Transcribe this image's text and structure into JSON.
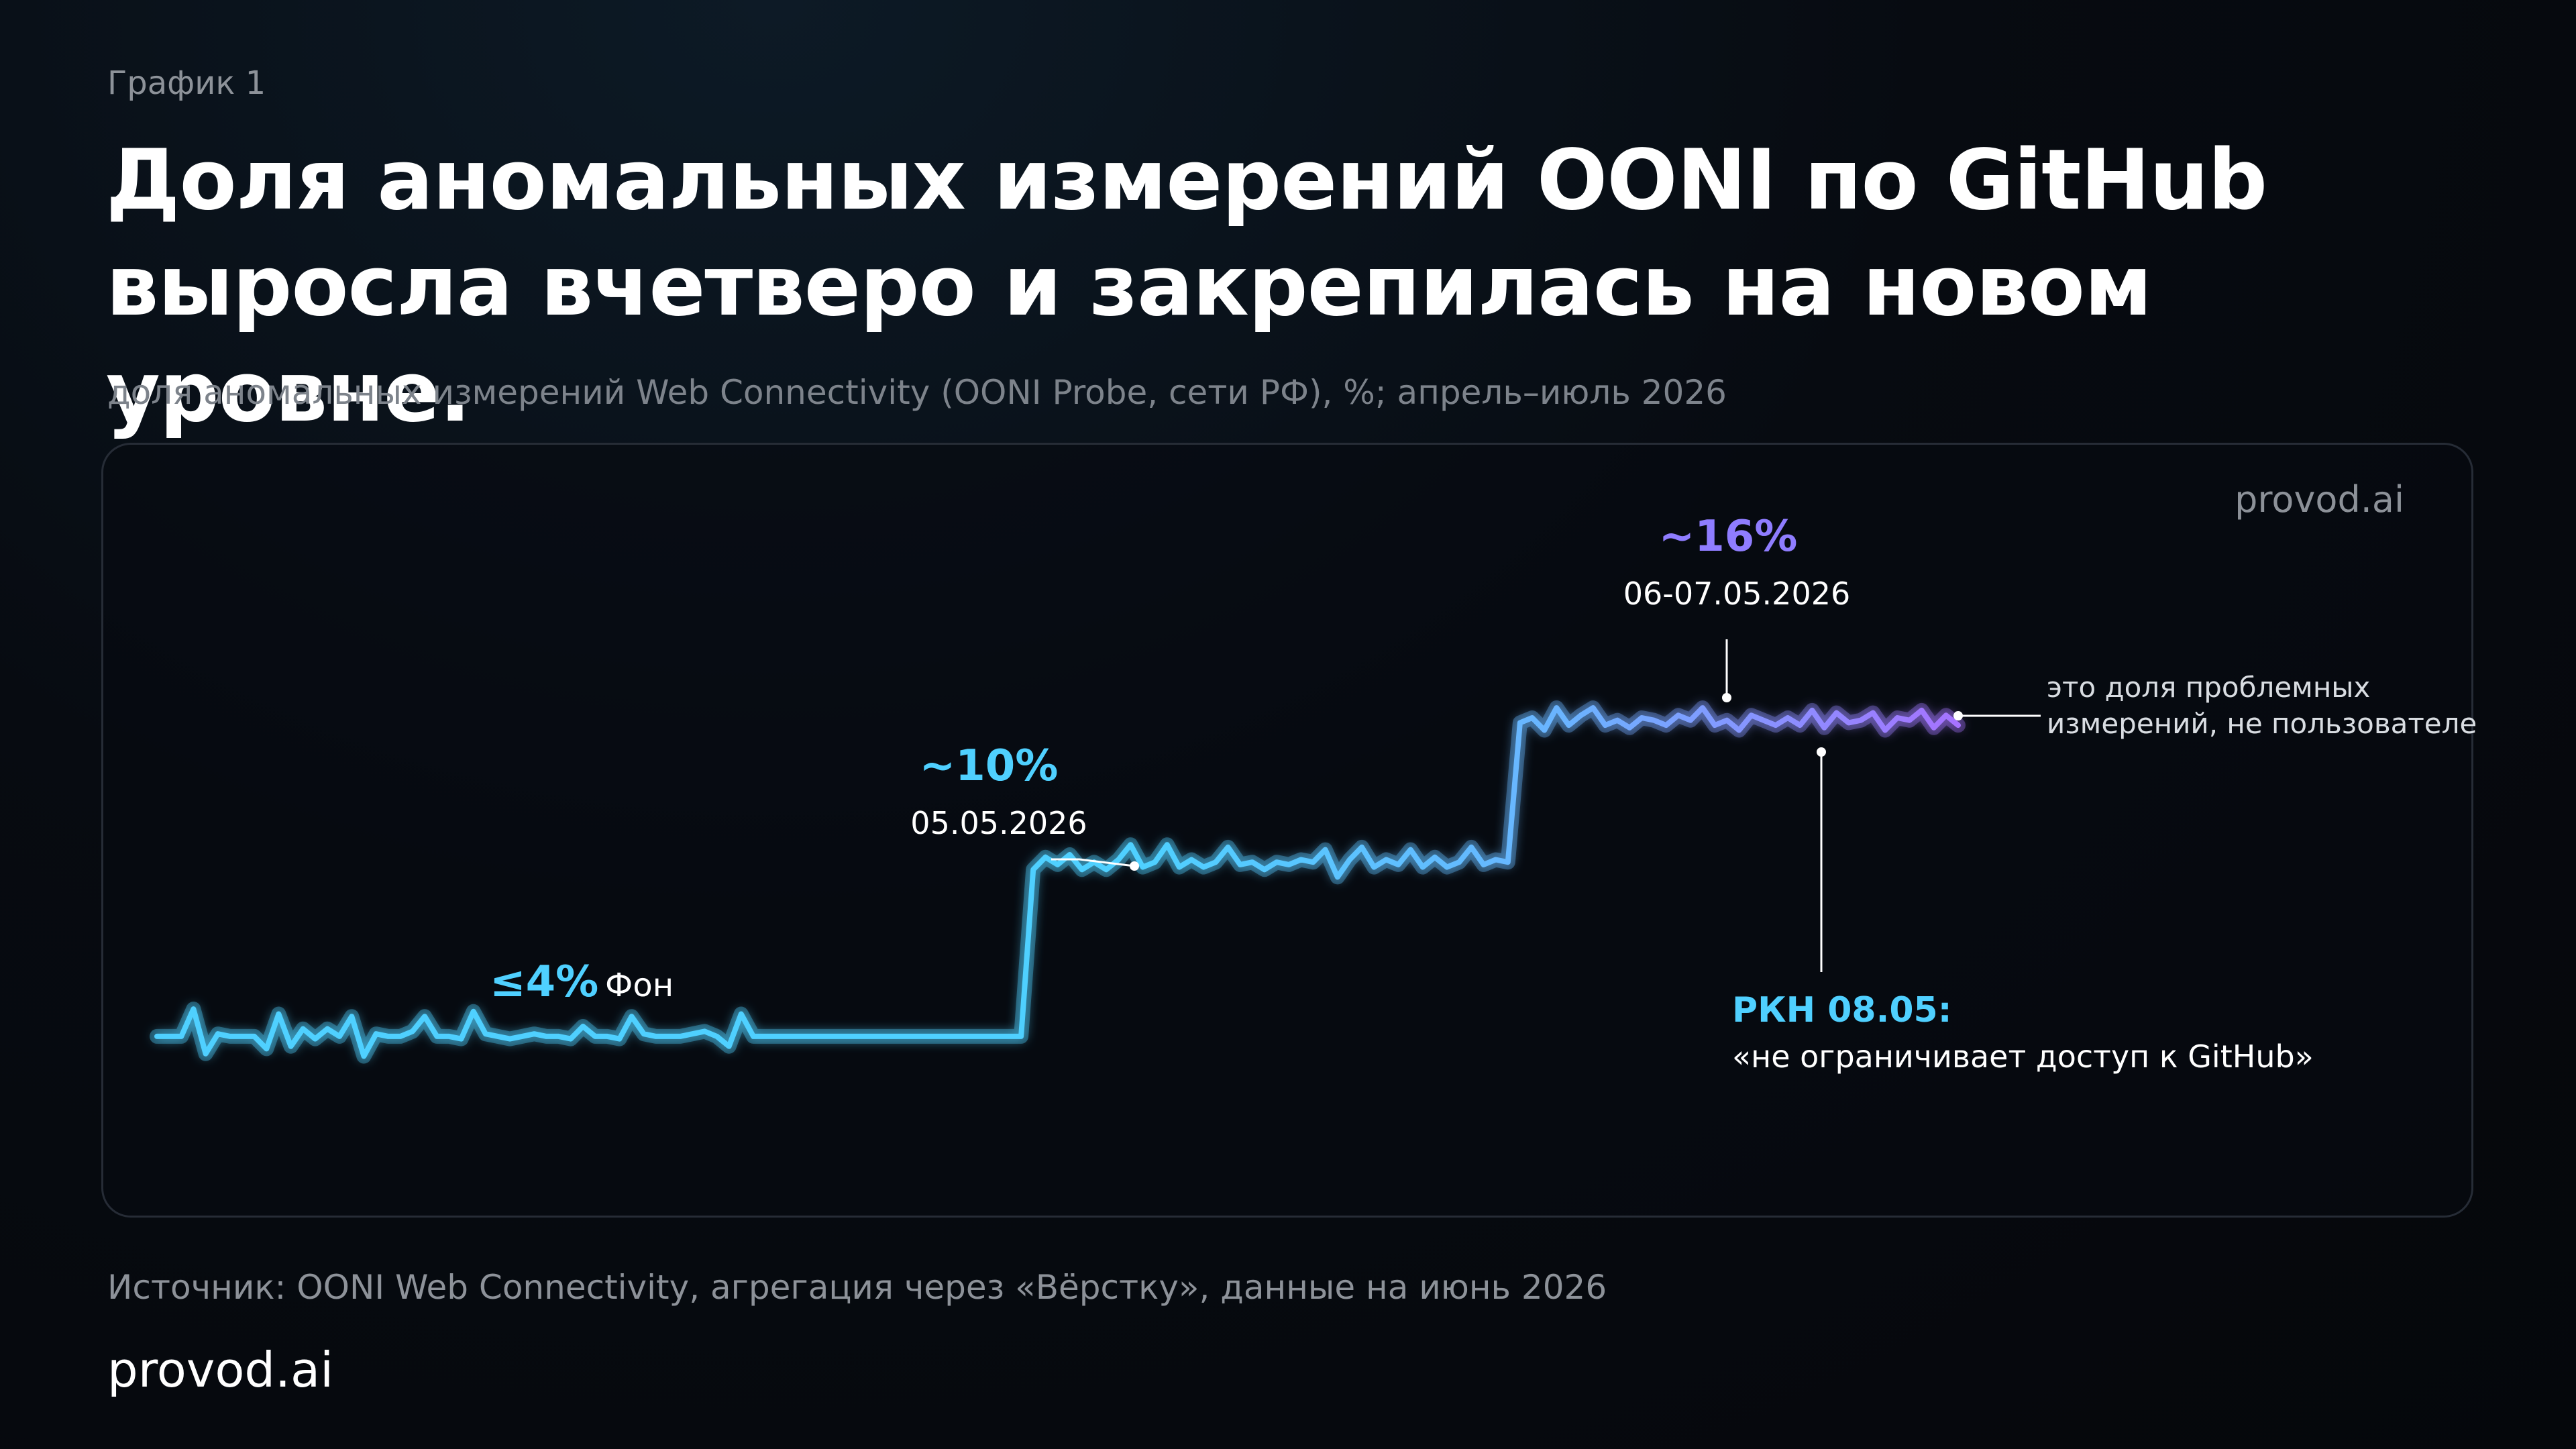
{
  "header": {
    "kicker": "График 1",
    "title_line1": "Доля аномальных измерений OONI по GitHub",
    "title_line2": "выросла вчетверо и закрепилась на новом уровне.",
    "subtitle": "доля аномальных измерений Web Connectivity (OONI Probe, сети РФ), %; апрель–июль 2026"
  },
  "panel_brand": "provod.ai",
  "footer": {
    "source": "Источник: OONI Web Connectivity, агрегация через «Вёрстку», данные на июнь 2026",
    "brand": "provod.ai"
  },
  "colors": {
    "low": "#4fd0ff",
    "mid": "#6ab4ff",
    "high": "#a672ff",
    "annotation_text": "#ffffff",
    "note_text": "#d9dde2"
  },
  "chart_data": {
    "type": "line",
    "title": "Доля аномальных измерений OONI по GitHub выросла вчетверо и закрепилась на новом уровне.",
    "ylabel": "",
    "xlabel": "",
    "y_unit": "%",
    "x_range": [
      "апрель 2026",
      "июль 2026"
    ],
    "ylim": [
      0,
      20
    ],
    "axes_visible": false,
    "grid": false,
    "legend": "none",
    "x_index_note": "точки равномерно по времени",
    "series": [
      {
        "values": [
          3.3,
          3.3,
          3.3,
          4.4,
          2.6,
          3.4,
          3.3,
          3.3,
          3.3,
          2.8,
          4.2,
          2.9,
          3.6,
          3.2,
          3.6,
          3.3,
          4.1,
          2.5,
          3.4,
          3.3,
          3.3,
          3.5,
          4.1,
          3.3,
          3.3,
          3.2,
          4.3,
          3.4,
          3.3,
          3.2,
          3.3,
          3.4,
          3.3,
          3.3,
          3.2,
          3.7,
          3.3,
          3.3,
          3.2,
          4.1,
          3.4,
          3.3,
          3.3,
          3.3,
          3.4,
          3.5,
          3.3,
          2.9,
          4.2,
          3.3,
          3.3,
          3.3,
          3.3,
          3.3,
          3.3,
          3.3,
          3.3,
          3.3,
          3.3,
          3.3,
          3.3,
          3.3,
          3.3,
          3.3,
          3.3,
          3.3,
          3.3,
          3.3,
          3.3,
          3.3,
          3.3,
          3.3,
          10.0,
          10.5,
          10.2,
          10.6,
          10.0,
          10.3,
          10.0,
          10.4,
          11.0,
          10.1,
          10.3,
          11.0,
          10.1,
          10.4,
          10.1,
          10.3,
          10.9,
          10.2,
          10.3,
          10.0,
          10.3,
          10.2,
          10.4,
          10.3,
          10.8,
          9.7,
          10.4,
          10.9,
          10.1,
          10.4,
          10.2,
          10.8,
          10.1,
          10.5,
          10.1,
          10.3,
          10.9,
          10.2,
          10.4,
          10.3,
          15.9,
          16.1,
          15.6,
          16.5,
          15.8,
          16.2,
          16.5,
          15.8,
          16.0,
          15.7,
          16.1,
          16.0,
          15.8,
          16.2,
          16.0,
          16.5,
          15.8,
          16.0,
          15.6,
          16.2,
          16.0,
          15.8,
          16.1,
          15.8,
          16.4,
          15.7,
          16.3,
          15.9,
          16.0,
          16.3,
          15.6,
          16.1,
          16.0,
          16.4,
          15.7,
          16.2,
          15.8
        ]
      }
    ],
    "annotations": [
      {
        "value": "≤4%",
        "label": "Фон"
      },
      {
        "value": "~10%",
        "label": "05.05.2026"
      },
      {
        "value": "~16%",
        "label": "06-07.05.2026"
      },
      {
        "value": "РКН 08.05:",
        "label": "«не ограничивает доступ к GitHub»"
      },
      {
        "label": "это доля проблемных",
        "label2": "измерений, не пользователей"
      }
    ]
  }
}
